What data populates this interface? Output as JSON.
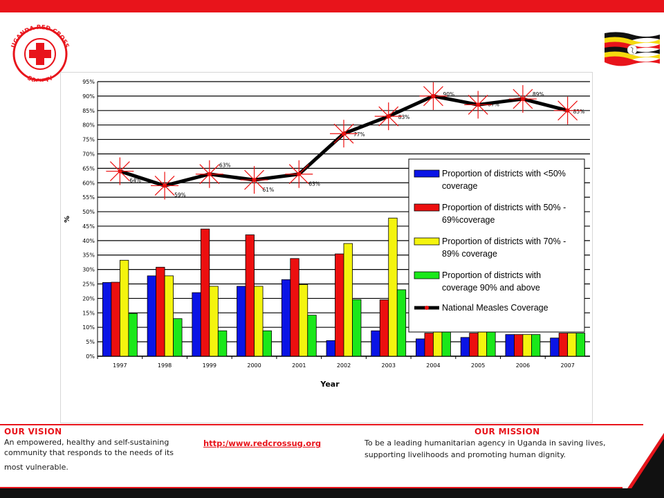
{
  "logo": {
    "text": "UGANDA RED CROSS SOCIETY",
    "accent": "#e8141b"
  },
  "chart_data": {
    "type": "bar",
    "categories": [
      "1997",
      "1998",
      "1999",
      "2000",
      "2001",
      "2002",
      "2003",
      "2004",
      "2005",
      "2006",
      "2007"
    ],
    "series": [
      {
        "name": "Proportion of districts with <50% coverage",
        "color": "#0a14e6",
        "values": [
          25.5,
          27.8,
          22.0,
          24.2,
          26.5,
          5.4,
          8.8,
          6.0,
          6.5,
          7.5,
          6.3
        ]
      },
      {
        "name": "Proportion of districts with 50% - 69%coverage",
        "color": "#ec0f0f",
        "values": [
          25.6,
          30.8,
          44.0,
          42.0,
          33.8,
          35.4,
          19.5,
          8.0,
          8.0,
          7.5,
          8.0
        ]
      },
      {
        "name": "Proportion of districts with 70% - 89% coverage",
        "color": "#f4f40e",
        "values": [
          33.2,
          27.8,
          24.2,
          24.2,
          24.8,
          39.0,
          47.8,
          9.0,
          9.0,
          7.5,
          8.0
        ]
      },
      {
        "name": "Proportion of districts with coverage 90% and above",
        "color": "#1ae81a",
        "values": [
          14.8,
          13.0,
          8.8,
          8.8,
          14.2,
          19.6,
          23.0,
          9.0,
          9.0,
          7.5,
          8.0
        ]
      }
    ],
    "line": {
      "name": "National Measles Coverage",
      "color": "#000000",
      "marker_color": "#ec0f0f",
      "values": [
        64,
        59,
        63,
        61,
        63,
        77,
        83,
        90,
        87,
        89,
        85
      ]
    },
    "data_labels": [
      "64%",
      "59%",
      "63%",
      "61%",
      "63%",
      "77%",
      "83%",
      "90%",
      "87%",
      "89%",
      "85%"
    ],
    "ylabel": "%",
    "xlabel": "Year",
    "ylim": [
      0,
      95
    ],
    "yticks": [
      "0%",
      "5%",
      "10%",
      "15%",
      "20%",
      "25%",
      "30%",
      "35%",
      "40%",
      "45%",
      "50%",
      "55%",
      "60%",
      "65%",
      "70%",
      "75%",
      "80%",
      "85%",
      "90%",
      "95%"
    ],
    "grid": true,
    "legend_position": "right"
  },
  "footer": {
    "vision_title": "OUR VISION",
    "vision_line1": "An empowered, healthy and self-sustaining community that responds to the needs of its",
    "vision_line2": "most vulnerable.",
    "url": "http:/www.redcrossug.org",
    "mission_title": "OUR MISSION",
    "mission_text": "To be a leading humanitarian agency in Uganda in saving lives, supporting livelihoods and promoting human dignity."
  }
}
